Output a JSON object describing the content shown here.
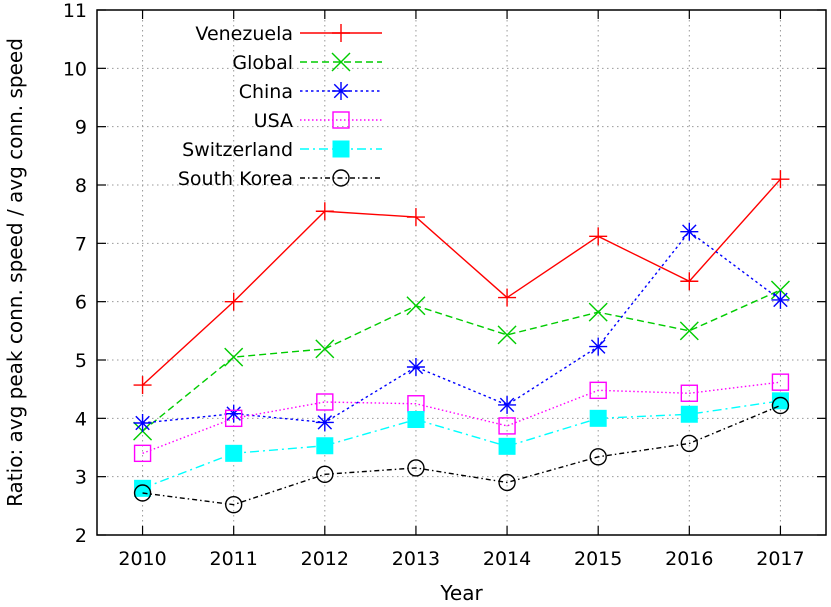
{
  "chart_data": {
    "type": "line",
    "title": "",
    "xlabel": "Year",
    "ylabel": "Ratio: avg peak conn. speed / avg conn. speed",
    "x": [
      2010,
      2011,
      2012,
      2013,
      2014,
      2015,
      2016,
      2017
    ],
    "x_tick_labels": [
      "2010",
      "2011",
      "2012",
      "2013",
      "2014",
      "2015",
      "2016",
      "2017"
    ],
    "xlim": [
      2009.5,
      2017.5
    ],
    "ylim": [
      2,
      11
    ],
    "y_ticks": [
      2,
      3,
      4,
      5,
      6,
      7,
      8,
      9,
      10,
      11
    ],
    "y_tick_labels": [
      "2",
      "3",
      "4",
      "5",
      "6",
      "7",
      "8",
      "9",
      "10",
      "11"
    ],
    "grid": true,
    "legend_position": "top-left",
    "series": [
      {
        "name": "Venezuela",
        "color": "#ff0000",
        "marker": "plus",
        "dash": "solid",
        "values": [
          4.57,
          6.0,
          7.55,
          7.45,
          6.07,
          7.12,
          6.35,
          8.1
        ]
      },
      {
        "name": "Global",
        "color": "#00cc00",
        "marker": "cross",
        "dash": "dashed",
        "values": [
          3.78,
          5.05,
          5.19,
          5.93,
          5.43,
          5.82,
          5.5,
          6.2
        ]
      },
      {
        "name": "China",
        "color": "#0000ff",
        "marker": "star",
        "dash": "dotted",
        "values": [
          3.92,
          4.08,
          3.93,
          4.88,
          4.23,
          5.23,
          7.2,
          6.03
        ]
      },
      {
        "name": "USA",
        "color": "#ff00ff",
        "marker": "square-open",
        "dash": "dotted-fine",
        "values": [
          3.4,
          4.0,
          4.28,
          4.25,
          3.87,
          4.48,
          4.43,
          4.62
        ]
      },
      {
        "name": "Switzerland",
        "color": "#00ffff",
        "marker": "square-filled",
        "dash": "dash-dot",
        "values": [
          2.8,
          3.4,
          3.53,
          3.98,
          3.52,
          4.0,
          4.07,
          4.3
        ]
      },
      {
        "name": "South Korea",
        "color": "#000000",
        "marker": "circle-open",
        "dash": "dash-dot-fine",
        "values": [
          2.72,
          2.52,
          3.04,
          3.15,
          2.9,
          3.34,
          3.57,
          4.22
        ]
      }
    ]
  }
}
